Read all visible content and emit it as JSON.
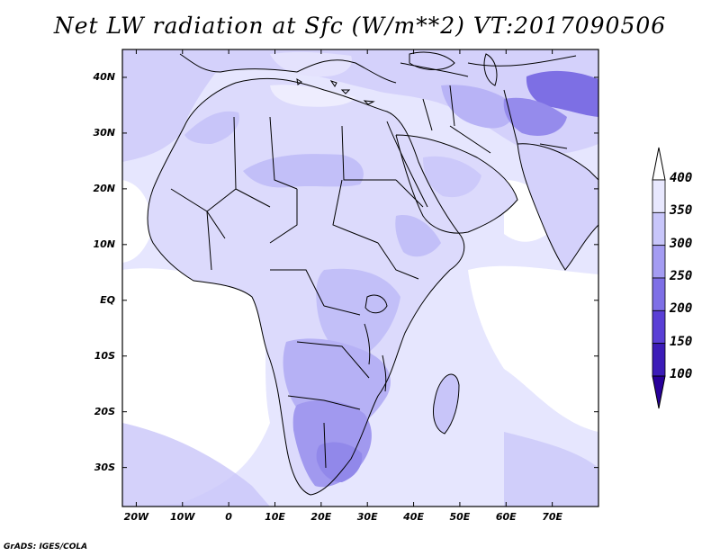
{
  "title": "Net LW radiation at Sfc (W/m**2) VT:2017090506",
  "credit": "GrADS: IGES/COLA",
  "map": {
    "projection": "lat-lon",
    "lon_range": [
      -23,
      80
    ],
    "lat_range": [
      -37,
      45
    ],
    "lat_ticks": [
      {
        "value": 40,
        "label": "40N"
      },
      {
        "value": 30,
        "label": "30N"
      },
      {
        "value": 20,
        "label": "20N"
      },
      {
        "value": 10,
        "label": "10N"
      },
      {
        "value": 0,
        "label": "EQ"
      },
      {
        "value": -10,
        "label": "10S"
      },
      {
        "value": -20,
        "label": "20S"
      },
      {
        "value": -30,
        "label": "30S"
      }
    ],
    "lon_ticks": [
      {
        "value": -20,
        "label": "20W"
      },
      {
        "value": -10,
        "label": "10W"
      },
      {
        "value": 0,
        "label": "0"
      },
      {
        "value": 10,
        "label": "10E"
      },
      {
        "value": 20,
        "label": "20E"
      },
      {
        "value": 30,
        "label": "30E"
      },
      {
        "value": 40,
        "label": "40E"
      },
      {
        "value": 50,
        "label": "50E"
      },
      {
        "value": 60,
        "label": "60E"
      },
      {
        "value": 70,
        "label": "70E"
      }
    ]
  },
  "colorbar": {
    "levels": [
      {
        "value": 400,
        "label": "400"
      },
      {
        "value": 350,
        "label": "350"
      },
      {
        "value": 300,
        "label": "300"
      },
      {
        "value": 250,
        "label": "250"
      },
      {
        "value": 200,
        "label": "200"
      },
      {
        "value": 150,
        "label": "150"
      },
      {
        "value": 100,
        "label": "100"
      }
    ],
    "colors_top_to_bottom": [
      "#ffffff",
      "#e8e8fe",
      "#c8c6fa",
      "#a49cf2",
      "#7e6fe6",
      "#5a3fd6",
      "#3c1cb8",
      "#28009a"
    ]
  },
  "palette": {
    "ocean_bright": "#ffffff",
    "ocean_mid": "#e6e6fe",
    "land_light": "#dcdafc",
    "land_mid": "#c2bff8",
    "land_dark": "#9e97ee",
    "coast": "#000000"
  }
}
